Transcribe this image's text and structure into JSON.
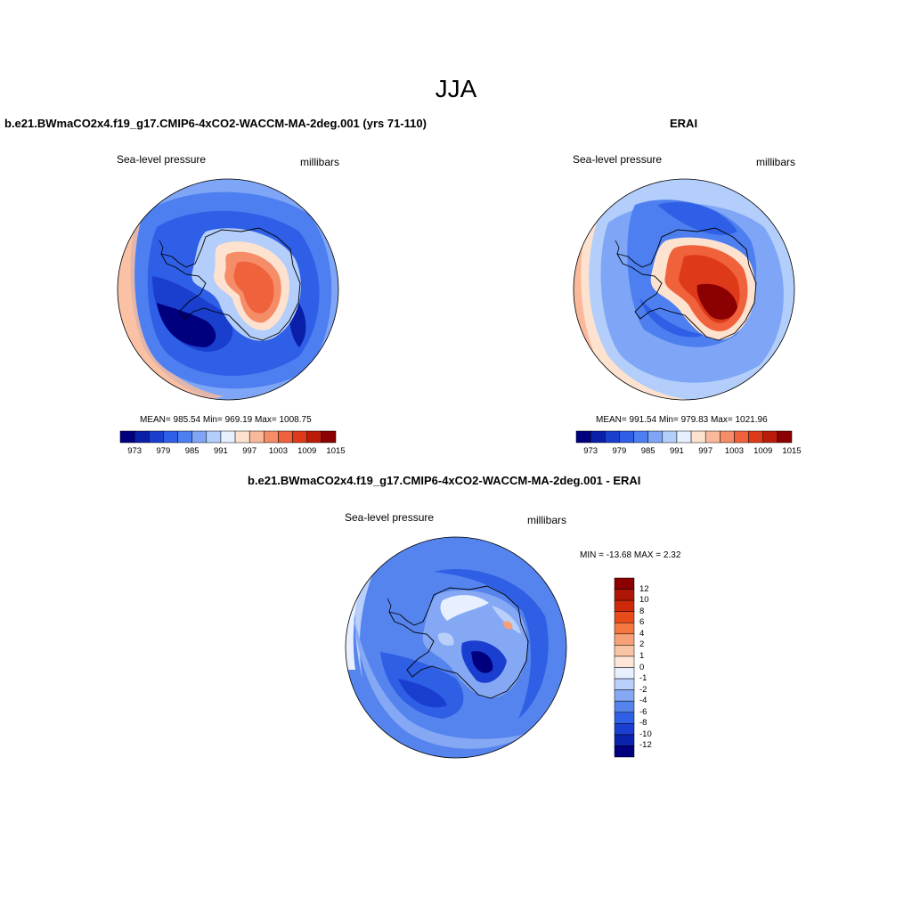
{
  "figure": {
    "season_title": "JJA",
    "variable_label": "Sea-level pressure",
    "units_label": "millibars"
  },
  "panels": [
    {
      "title": "b.e21.BWmaCO2x4.f19_g17.CMIP6-4xCO2-WACCM-MA-2deg.001 (yrs 71-110)",
      "stats": "MEAN= 985.54  Min= 969.19  Max= 1008.75",
      "ticks": [
        "973",
        "979",
        "985",
        "991",
        "997",
        "1003",
        "1009",
        "1015"
      ]
    },
    {
      "title": "ERAI",
      "stats": "MEAN= 991.54  Min= 979.83  Max= 1021.96",
      "ticks": [
        "973",
        "979",
        "985",
        "991",
        "997",
        "1003",
        "1009",
        "1015"
      ]
    },
    {
      "title": "b.e21.BWmaCO2x4.f19_g17.CMIP6-4xCO2-WACCM-MA-2deg.001 - ERAI",
      "stats": "MIN = -13.68 MAX =   2.32",
      "ticks": [
        "12",
        "10",
        "8",
        "6",
        "4",
        "2",
        "1",
        "0",
        "-1",
        "-2",
        "-4",
        "-6",
        "-8",
        "-10",
        "-12"
      ]
    }
  ],
  "colors": {
    "abs_scale": [
      "#00007f",
      "#0a1fa8",
      "#1a3fcf",
      "#2f5fe6",
      "#4d7ff0",
      "#7fa6f6",
      "#b3cefa",
      "#e6f0ff",
      "#fde2d0",
      "#f9b99a",
      "#f58d68",
      "#f0623c",
      "#de3a1a",
      "#bb1c0a",
      "#8b0000"
    ],
    "diff_scale": [
      "#8b0000",
      "#b01606",
      "#cc2a08",
      "#e84a1a",
      "#f3773f",
      "#f7a077",
      "#f9c4a3",
      "#fde6d6",
      "#e8f0ff",
      "#b8cffa",
      "#85a8f4",
      "#5684ee",
      "#2e5fe4",
      "#1a3ed0",
      "#0b22ad",
      "#00007f"
    ]
  }
}
